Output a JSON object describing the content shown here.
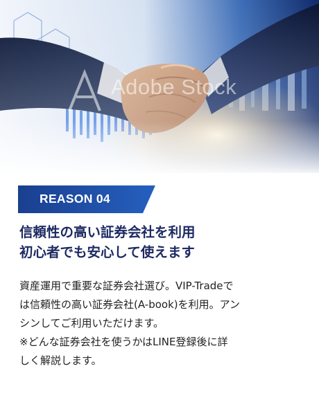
{
  "hero": {
    "image_subject": "handshake",
    "watermark": "Adobe Stock"
  },
  "badge": {
    "label": "REASON 04",
    "color": "#1f4a9c"
  },
  "headline": {
    "line1": "信頼性の高い証券会社を利用",
    "line2": "初心者でも安心して使えます",
    "color": "#1d2a62"
  },
  "body": {
    "line1": "資産運用で重要な証券会社選び。VIP-Tradeで",
    "line2": "は信頼性の高い証券会社(A-book)を利用。アン",
    "line3": "シンしてご利用いただけます。",
    "line4": "※どんな証券会社を使うかはLINE登録後に詳",
    "line5": "しく解説します。"
  }
}
